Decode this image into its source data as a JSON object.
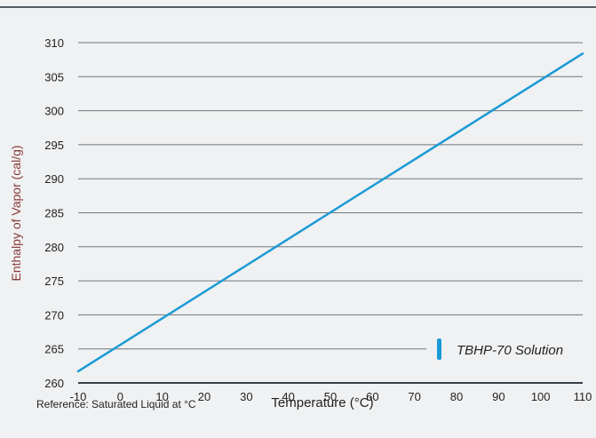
{
  "chart_data": {
    "type": "line",
    "ylabel": "Enthalpy of Vapor (cal/g)",
    "xlabel": "Temperature (°C)",
    "note": "Reference: Saturated Liquid at °C",
    "xlim": [
      -10,
      110
    ],
    "ylim": [
      260,
      310
    ],
    "x_ticks": [
      "-10",
      "0",
      "10",
      "20",
      "30",
      "40",
      "50",
      "60",
      "70",
      "80",
      "90",
      "100",
      "110"
    ],
    "y_ticks": [
      "260",
      "265",
      "270",
      "275",
      "280",
      "285",
      "290",
      "295",
      "300",
      "305",
      "310"
    ],
    "grid": true,
    "legend_position": "bottom-right",
    "series": [
      {
        "name": "TBHP-70 Solution",
        "color": "#1a9ad6",
        "x": [
          -10,
          110
        ],
        "y": [
          261.7,
          308.4
        ]
      }
    ]
  },
  "colors": {
    "background": "#f0f1f2",
    "grid": "#6f7780",
    "axis_title": "#8a3b3b"
  }
}
